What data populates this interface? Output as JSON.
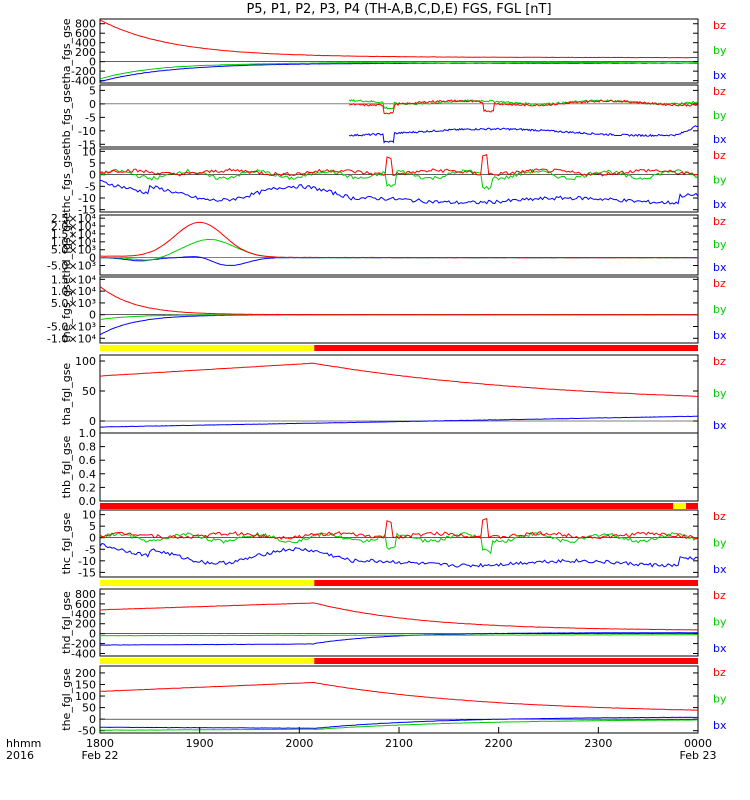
{
  "title": "P5, P1, P2, P3, P4 (TH-A,B,C,D,E) FGS, FGL [nT]",
  "x_axis": {
    "ticks": [
      "1800",
      "1900",
      "2000",
      "2100",
      "2200",
      "2300",
      "0000"
    ],
    "date_start": "Feb 22",
    "date_end": "Feb 23",
    "label_top": "hhmm",
    "label_bottom": "2016"
  },
  "colors": {
    "bz": "#ff0000",
    "by": "#00cc00",
    "bx": "#0000ff",
    "bar_yellow": "#ffff00",
    "bar_red": "#ff0000"
  },
  "chart_data": [
    {
      "type": "line",
      "ylabel": "tha_fgs_gse",
      "ylim": [
        -450,
        900
      ],
      "yticks": [
        "-400",
        "-200",
        "0",
        "200",
        "400",
        "600",
        "800"
      ],
      "legend": [
        "bz",
        "by",
        "bx"
      ]
    },
    {
      "type": "line",
      "ylabel": "thb_fgs_gse",
      "ylim": [
        -16,
        7
      ],
      "yticks": [
        "-15",
        "-10",
        "-5",
        "0",
        "5"
      ],
      "legend": [
        "bz",
        "by",
        "bx"
      ]
    },
    {
      "type": "line",
      "ylabel": "thc_fgs_gse",
      "ylim": [
        -16,
        11
      ],
      "yticks": [
        "-15",
        "-10",
        "-5",
        "0",
        "5",
        "10"
      ],
      "legend": [
        "bz",
        "by",
        "bx"
      ]
    },
    {
      "type": "line",
      "ylabel": "thd_fgs_gse",
      "ylim": [
        -11000,
        27000
      ],
      "yticks": [
        "-5.0×10³",
        "0",
        "5.0×10³",
        "1.0×10⁴",
        "1.5×10⁴",
        "2.0×10⁴",
        "2.5×10⁴"
      ],
      "legend": [
        "bz",
        "by",
        "bx"
      ]
    },
    {
      "type": "line",
      "ylabel": "the_fgs_gse",
      "ylim": [
        -12000,
        16000
      ],
      "yticks": [
        "-1.0×10⁴",
        "-5.0×10³",
        "0",
        "5.0×10³",
        "1.0×10⁴",
        "1.5×10⁴"
      ],
      "legend": [
        "bz",
        "by",
        "bx"
      ]
    },
    {
      "type": "line",
      "ylabel": "tha_fgl_gse",
      "ylim": [
        -20,
        110
      ],
      "yticks": [
        "0",
        "50",
        "100"
      ],
      "legend": [
        "bz",
        "by",
        "bx"
      ],
      "flag_bar": [
        {
          "color": "yellow",
          "from_hours": 0,
          "to_hours": 2.15
        },
        {
          "color": "red",
          "from_hours": 2.15,
          "to_hours": 6
        }
      ]
    },
    {
      "type": "line",
      "ylabel": "thb_fgl_gse",
      "ylim": [
        0,
        1
      ],
      "yticks": [
        "0.0",
        "0.2",
        "0.4",
        "0.6",
        "0.8",
        "1.0"
      ],
      "legend": []
    },
    {
      "type": "line",
      "ylabel": "thc_fgl_gse",
      "ylim": [
        -17,
        12
      ],
      "yticks": [
        "-15",
        "-10",
        "-5",
        "0",
        "5",
        "10"
      ],
      "legend": [
        "bz",
        "by",
        "bx"
      ],
      "flag_bar": [
        {
          "color": "red",
          "from_hours": 0,
          "to_hours": 5.75
        },
        {
          "color": "yellow",
          "from_hours": 5.75,
          "to_hours": 5.88
        },
        {
          "color": "red",
          "from_hours": 5.88,
          "to_hours": 6
        }
      ]
    },
    {
      "type": "line",
      "ylabel": "thd_fgl_gse",
      "ylim": [
        -450,
        900
      ],
      "yticks": [
        "-400",
        "-200",
        "0",
        "200",
        "400",
        "600",
        "800"
      ],
      "legend": [
        "bz",
        "by",
        "bx"
      ],
      "flag_bar": [
        {
          "color": "yellow",
          "from_hours": 0,
          "to_hours": 2.15
        },
        {
          "color": "red",
          "from_hours": 2.15,
          "to_hours": 6
        }
      ]
    },
    {
      "type": "line",
      "ylabel": "the_fgl_gse",
      "ylim": [
        -60,
        230
      ],
      "yticks": [
        "-50",
        "0",
        "50",
        "100",
        "150",
        "200"
      ],
      "legend": [
        "bz",
        "by",
        "bx"
      ],
      "flag_bar": [
        {
          "color": "yellow",
          "from_hours": 0,
          "to_hours": 2.15
        },
        {
          "color": "red",
          "from_hours": 2.15,
          "to_hours": 6
        }
      ]
    }
  ]
}
